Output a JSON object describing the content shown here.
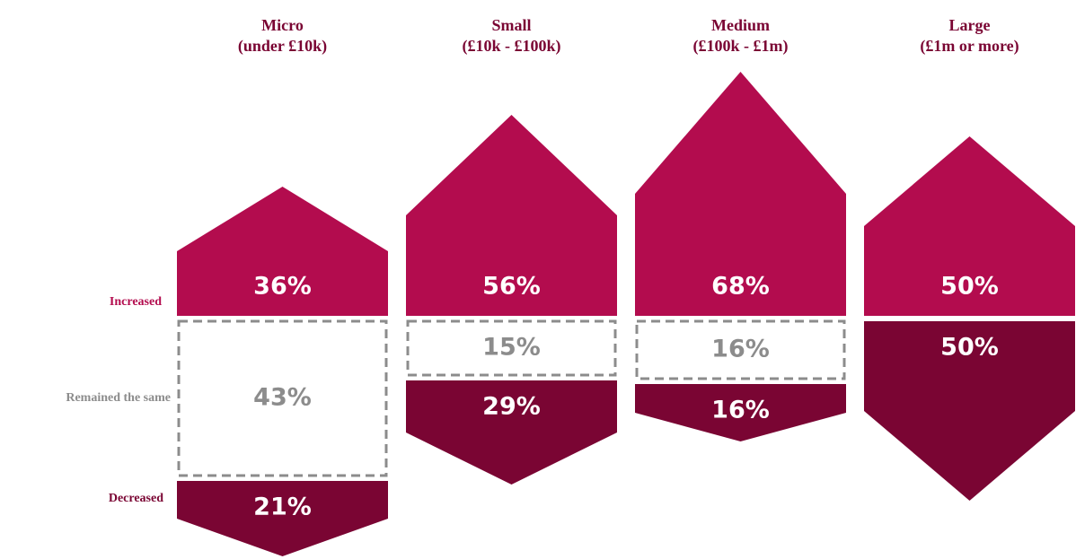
{
  "chart_data": {
    "type": "diverging-arrow",
    "categories": [
      "Micro",
      "Small",
      "Medium",
      "Large"
    ],
    "category_ranges": [
      "(under £10k)",
      "(£10k - £100k)",
      "(£100k - £1m)",
      "(£1m or more)"
    ],
    "series": [
      {
        "name": "Increased",
        "color": "#b30c4e",
        "values": [
          36,
          56,
          68,
          50
        ],
        "value_labels": [
          "36%",
          "56%",
          "68%",
          "50%"
        ]
      },
      {
        "name": "Remained the same",
        "color": "#8c8c8c",
        "values": [
          43,
          15,
          16,
          null
        ],
        "value_labels": [
          "43%",
          "15%",
          "16%",
          null
        ]
      },
      {
        "name": "Decreased",
        "color": "#7a0533",
        "values": [
          21,
          29,
          16,
          50
        ],
        "value_labels": [
          "21%",
          "29%",
          "16%",
          "50%"
        ]
      }
    ]
  }
}
